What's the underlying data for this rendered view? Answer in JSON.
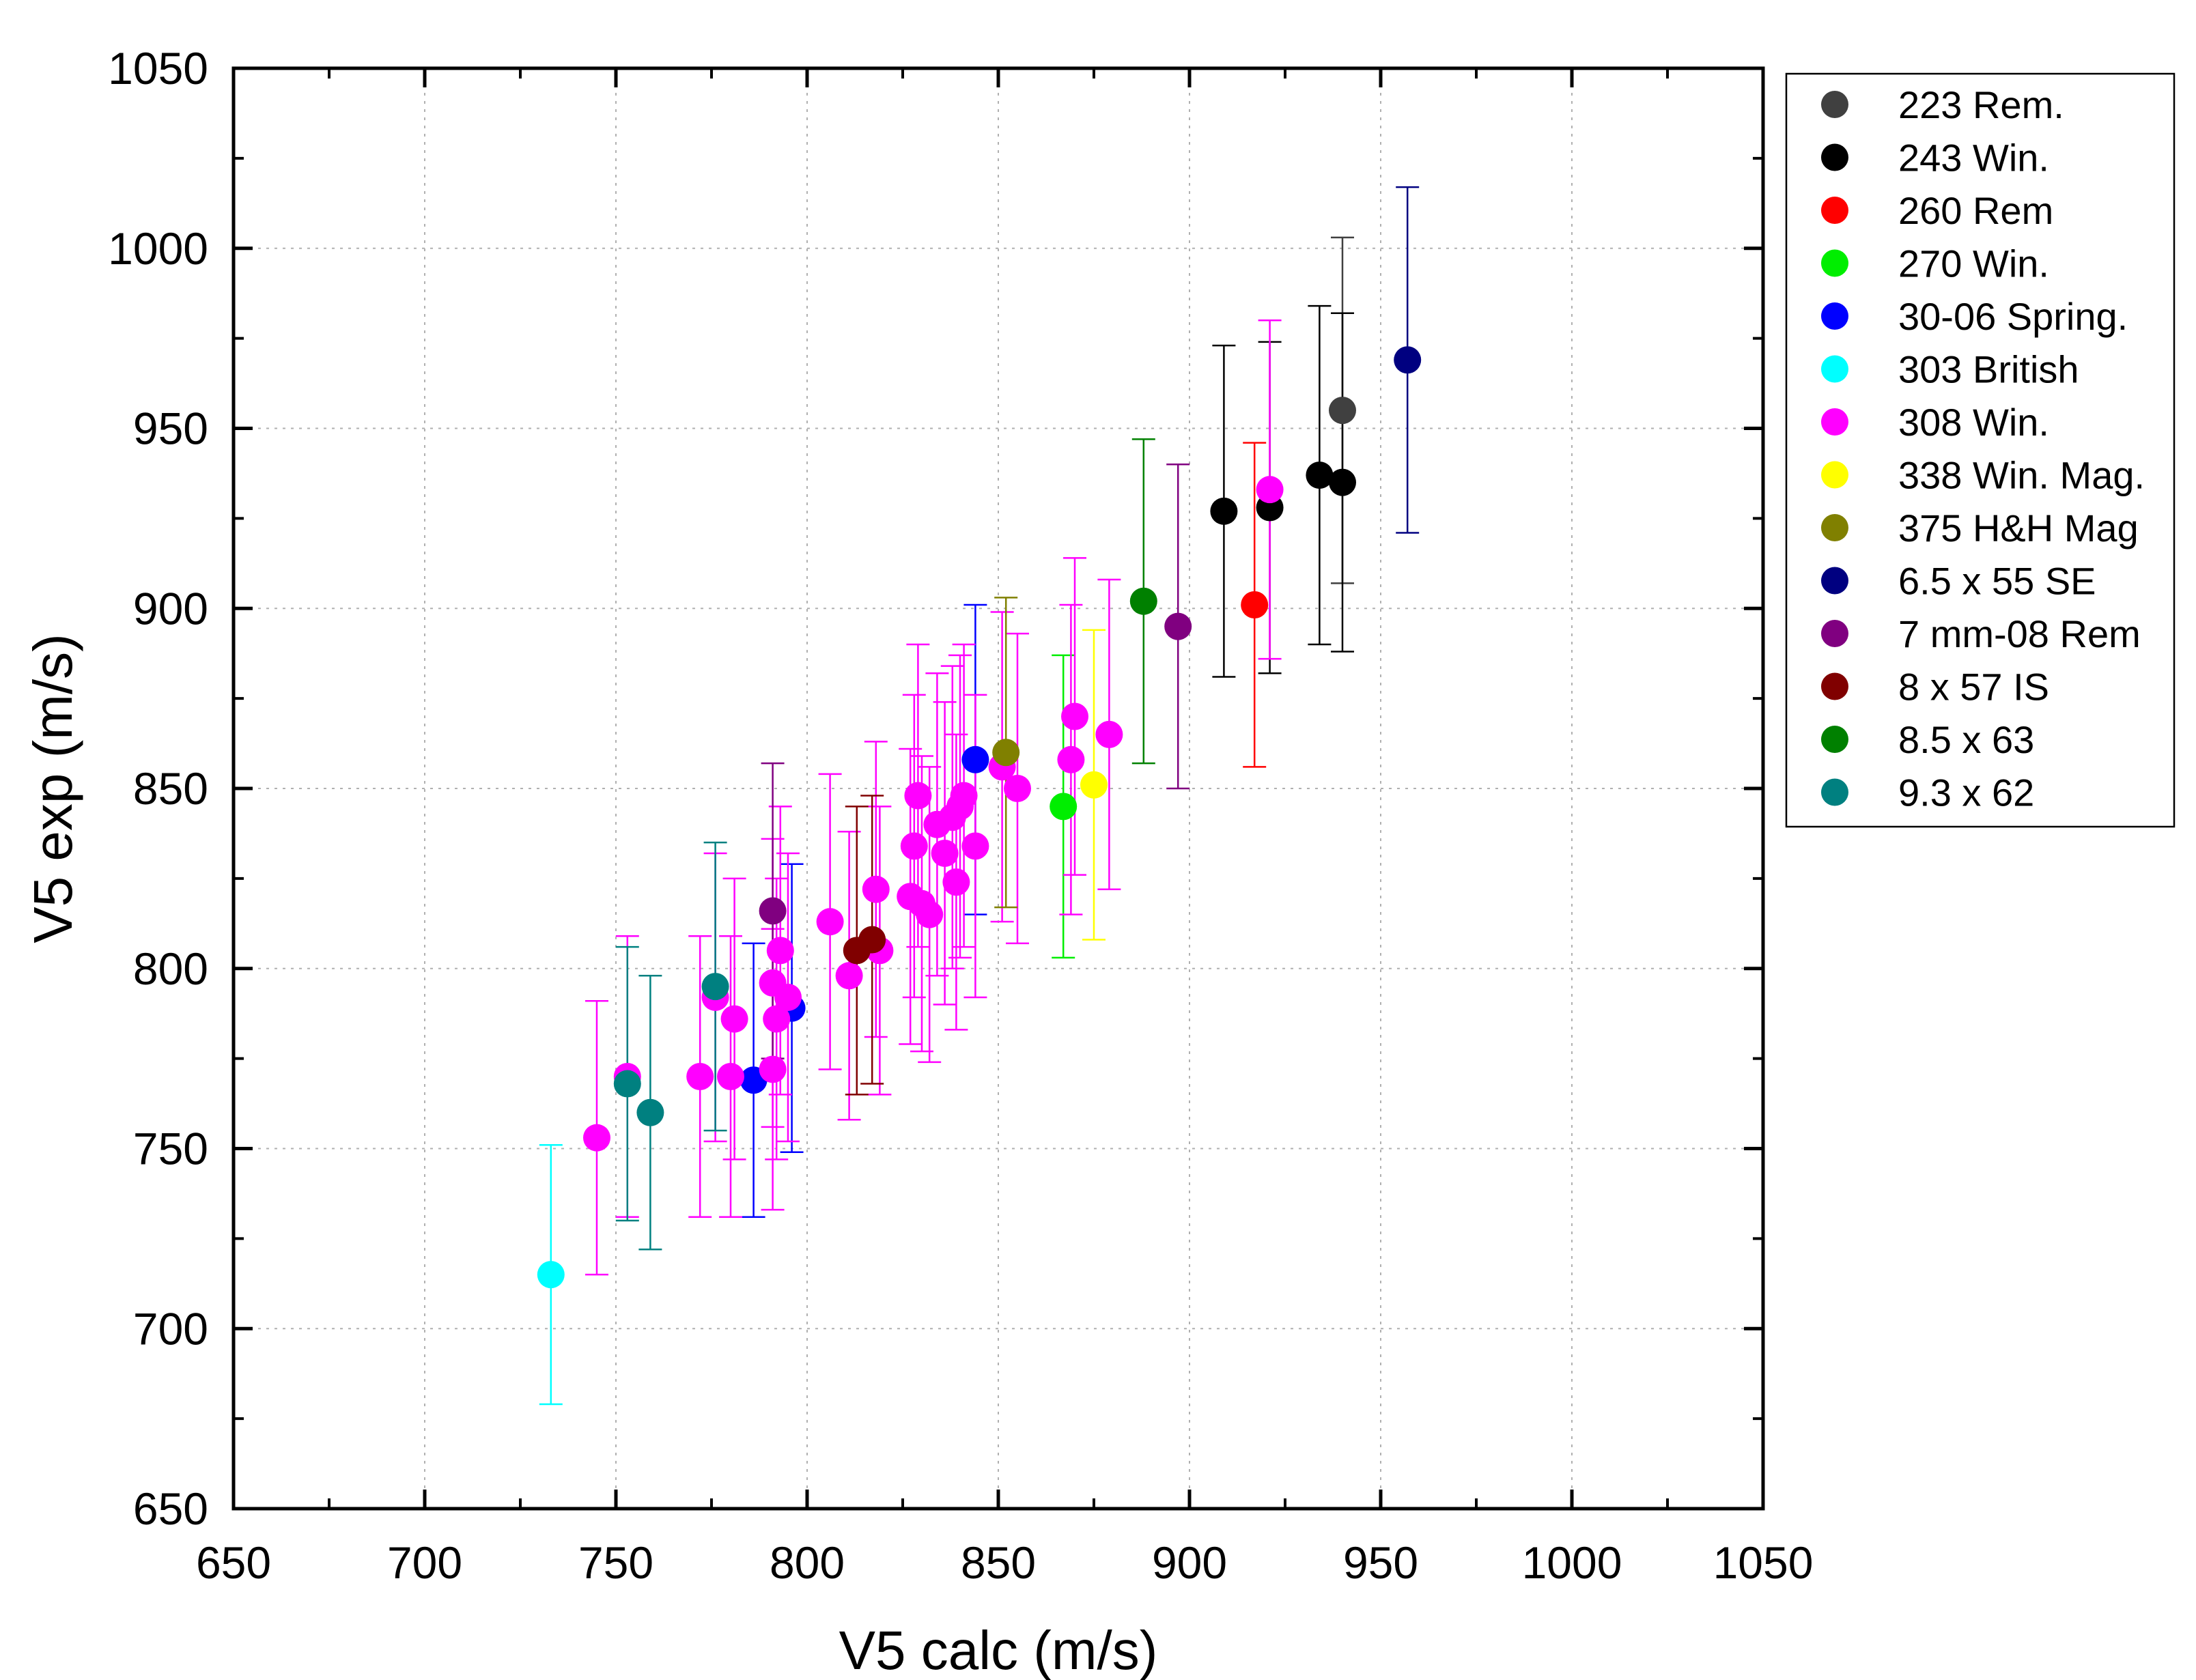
{
  "chart_data": {
    "type": "scatter",
    "title": "",
    "xlabel": "V5 calc (m/s)",
    "ylabel": "V5 exp (m/s)",
    "xlim": [
      650,
      1050
    ],
    "ylim": [
      650,
      1050
    ],
    "xticks": [
      650,
      700,
      750,
      800,
      850,
      900,
      950,
      1000,
      1050
    ],
    "yticks": [
      650,
      700,
      750,
      800,
      850,
      900,
      950,
      1000,
      1050
    ],
    "grid": true,
    "legend_position": "outside-right-top",
    "error_bars": "vertical",
    "series": [
      {
        "name": "223 Rem.",
        "color": "#404040",
        "points": [
          {
            "x": 940,
            "y": 955,
            "err": 48
          }
        ]
      },
      {
        "name": "243 Win.",
        "color": "#000000",
        "points": [
          {
            "x": 909,
            "y": 927,
            "err": 46
          },
          {
            "x": 921,
            "y": 928,
            "err": 46
          },
          {
            "x": 934,
            "y": 937,
            "err": 47
          },
          {
            "x": 940,
            "y": 935,
            "err": 47
          }
        ]
      },
      {
        "name": "260 Rem",
        "color": "#ff0000",
        "points": [
          {
            "x": 917,
            "y": 901,
            "err": 45
          }
        ]
      },
      {
        "name": "270 Win.",
        "color": "#00ee00",
        "points": [
          {
            "x": 867,
            "y": 845,
            "err": 42
          }
        ]
      },
      {
        "name": "30-06 Spring.",
        "color": "#0000ff",
        "points": [
          {
            "x": 786,
            "y": 769,
            "err": 38
          },
          {
            "x": 796,
            "y": 789,
            "err": 40
          },
          {
            "x": 844,
            "y": 858,
            "err": 43
          }
        ]
      },
      {
        "name": "303 British",
        "color": "#00ffff",
        "points": [
          {
            "x": 733,
            "y": 715,
            "err": 36
          }
        ]
      },
      {
        "name": "308 Win.",
        "color": "#ff00ff",
        "points": [
          {
            "x": 745,
            "y": 753,
            "err": 38
          },
          {
            "x": 753,
            "y": 770,
            "err": 39
          },
          {
            "x": 772,
            "y": 770,
            "err": 39
          },
          {
            "x": 776,
            "y": 792,
            "err": 40
          },
          {
            "x": 780,
            "y": 770,
            "err": 39
          },
          {
            "x": 781,
            "y": 786,
            "err": 39
          },
          {
            "x": 791,
            "y": 772,
            "err": 39
          },
          {
            "x": 791,
            "y": 796,
            "err": 40
          },
          {
            "x": 792,
            "y": 786,
            "err": 39
          },
          {
            "x": 793,
            "y": 805,
            "err": 40
          },
          {
            "x": 795,
            "y": 792,
            "err": 40
          },
          {
            "x": 806,
            "y": 813,
            "err": 41
          },
          {
            "x": 811,
            "y": 798,
            "err": 40
          },
          {
            "x": 818,
            "y": 822,
            "err": 41
          },
          {
            "x": 819,
            "y": 805,
            "err": 40
          },
          {
            "x": 827,
            "y": 820,
            "err": 41
          },
          {
            "x": 828,
            "y": 834,
            "err": 42
          },
          {
            "x": 829,
            "y": 848,
            "err": 42
          },
          {
            "x": 830,
            "y": 818,
            "err": 41
          },
          {
            "x": 832,
            "y": 815,
            "err": 41
          },
          {
            "x": 834,
            "y": 840,
            "err": 42
          },
          {
            "x": 836,
            "y": 832,
            "err": 42
          },
          {
            "x": 838,
            "y": 842,
            "err": 42
          },
          {
            "x": 839,
            "y": 824,
            "err": 41
          },
          {
            "x": 840,
            "y": 845,
            "err": 42
          },
          {
            "x": 841,
            "y": 848,
            "err": 42
          },
          {
            "x": 844,
            "y": 834,
            "err": 42
          },
          {
            "x": 851,
            "y": 856,
            "err": 43
          },
          {
            "x": 855,
            "y": 850,
            "err": 43
          },
          {
            "x": 869,
            "y": 858,
            "err": 43
          },
          {
            "x": 870,
            "y": 870,
            "err": 44
          },
          {
            "x": 879,
            "y": 865,
            "err": 43
          },
          {
            "x": 921,
            "y": 933,
            "err": 47
          }
        ]
      },
      {
        "name": "338 Win. Mag.",
        "color": "#ffff00",
        "points": [
          {
            "x": 875,
            "y": 851,
            "err": 43
          }
        ]
      },
      {
        "name": "375 H&H Mag",
        "color": "#808000",
        "points": [
          {
            "x": 852,
            "y": 860,
            "err": 43
          }
        ]
      },
      {
        "name": "6.5 x 55 SE",
        "color": "#000080",
        "points": [
          {
            "x": 957,
            "y": 969,
            "err": 48
          }
        ]
      },
      {
        "name": "7 mm-08 Rem",
        "color": "#800080",
        "points": [
          {
            "x": 791,
            "y": 816,
            "err": 41
          },
          {
            "x": 897,
            "y": 895,
            "err": 45
          }
        ]
      },
      {
        "name": "8 x 57 IS",
        "color": "#800000",
        "points": [
          {
            "x": 813,
            "y": 805,
            "err": 40
          },
          {
            "x": 817,
            "y": 808,
            "err": 40
          }
        ]
      },
      {
        "name": "8.5 x 63",
        "color": "#008000",
        "points": [
          {
            "x": 888,
            "y": 902,
            "err": 45
          }
        ]
      },
      {
        "name": "9.3 x 62",
        "color": "#008080",
        "points": [
          {
            "x": 753,
            "y": 768,
            "err": 38
          },
          {
            "x": 759,
            "y": 760,
            "err": 38
          },
          {
            "x": 776,
            "y": 795,
            "err": 40
          }
        ]
      }
    ]
  }
}
